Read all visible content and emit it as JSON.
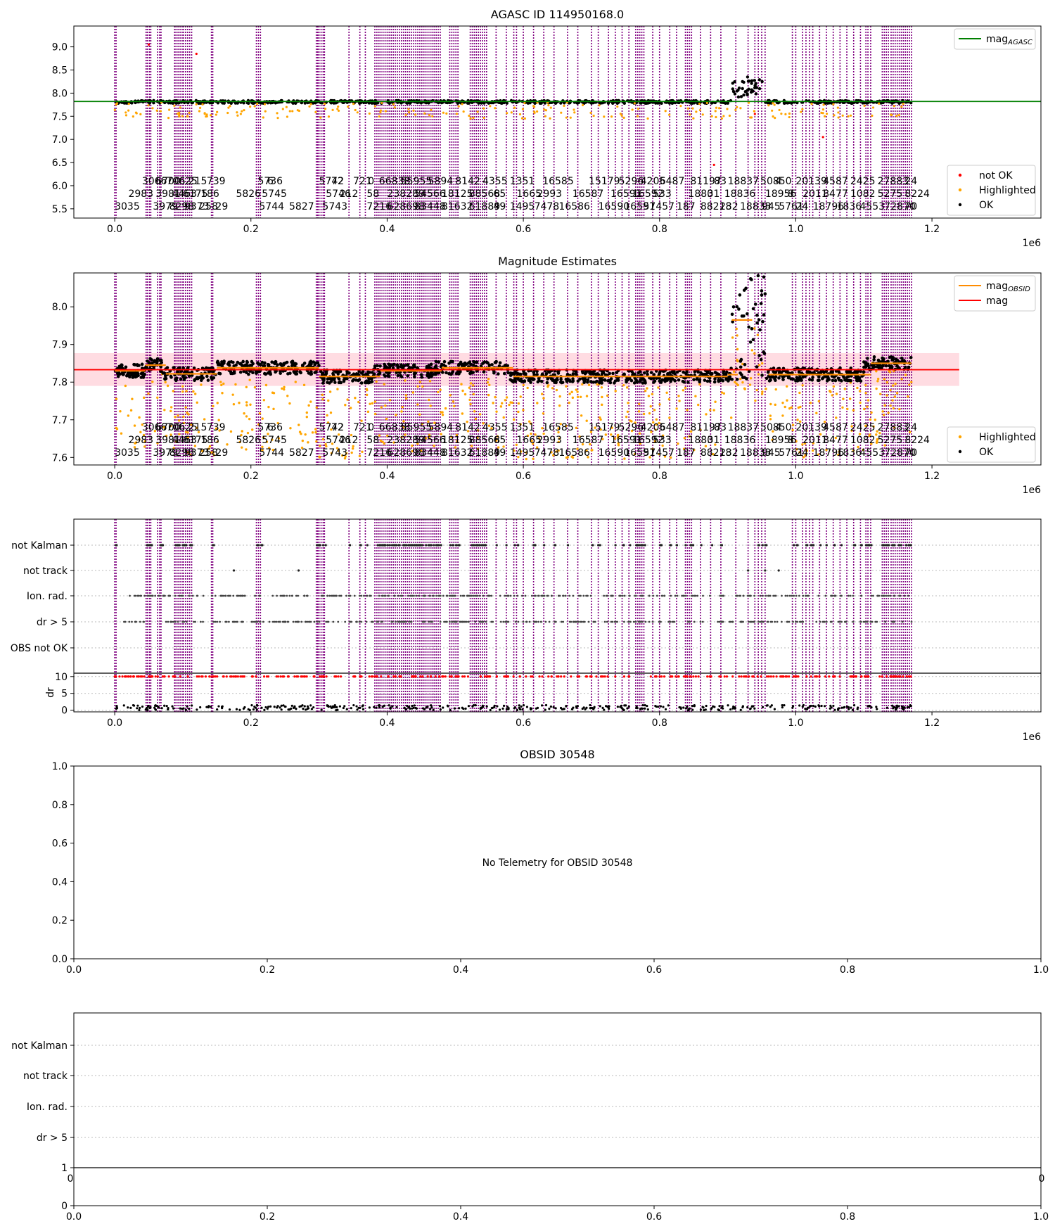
{
  "colors": {
    "ok": "#000000",
    "highlighted": "#ffa500",
    "not_ok": "#ff0000",
    "agasc": "#008000",
    "mag": "#ff0000",
    "mag_obsid": "#ff8c00",
    "obsid_lines": "#800080",
    "band": "#ffc0cb"
  },
  "chart_data": [
    {
      "type": "scatter",
      "title": "AGASC ID 114950168.0",
      "xlim": [
        -60000,
        1360000
      ],
      "ylim": [
        5.3,
        9.45
      ],
      "x_offset_label": "1e6",
      "x_ticks": [
        {
          "v": 0,
          "label": "0.0"
        },
        {
          "v": 200000,
          "label": "0.2"
        },
        {
          "v": 400000,
          "label": "0.4"
        },
        {
          "v": 600000,
          "label": "0.6"
        },
        {
          "v": 800000,
          "label": "0.8"
        },
        {
          "v": 1000000,
          "label": "1.0"
        },
        {
          "v": 1200000,
          "label": "1.2"
        }
      ],
      "y_ticks": [
        {
          "v": 5.5,
          "label": "5.5"
        },
        {
          "v": 6.0,
          "label": "6.0"
        },
        {
          "v": 6.5,
          "label": "6.5"
        },
        {
          "v": 7.0,
          "label": "7.0"
        },
        {
          "v": 7.5,
          "label": "7.5"
        },
        {
          "v": 8.0,
          "label": "8.0"
        },
        {
          "v": 8.5,
          "label": "8.5"
        },
        {
          "v": 9.0,
          "label": "9.0"
        }
      ],
      "hline": {
        "y": 7.82,
        "xmin": -60000,
        "xmax": 1360000,
        "color": "#008000"
      },
      "legend_top": [
        {
          "label": "mag",
          "sub": "AGASC",
          "color": "#008000"
        }
      ],
      "legend_bottom": [
        {
          "label": "not OK",
          "color": "#ff0000"
        },
        {
          "label": "Highlighted",
          "color": "#ffa500"
        },
        {
          "label": "OK",
          "color": "#000000"
        }
      ],
      "grid": false
    },
    {
      "type": "scatter",
      "title": "Magnitude Estimates",
      "xlim": [
        -60000,
        1360000
      ],
      "ylim": [
        7.58,
        8.09
      ],
      "x_offset_label": "1e6",
      "x_ticks": [
        {
          "v": 0,
          "label": "0.0"
        },
        {
          "v": 200000,
          "label": "0.2"
        },
        {
          "v": 400000,
          "label": "0.4"
        },
        {
          "v": 600000,
          "label": "0.6"
        },
        {
          "v": 800000,
          "label": "0.8"
        },
        {
          "v": 1000000,
          "label": "1.0"
        },
        {
          "v": 1200000,
          "label": "1.2"
        }
      ],
      "y_ticks": [
        {
          "v": 7.6,
          "label": "7.6"
        },
        {
          "v": 7.7,
          "label": "7.7"
        },
        {
          "v": 7.8,
          "label": "7.8"
        },
        {
          "v": 7.9,
          "label": "7.9"
        },
        {
          "v": 8.0,
          "label": "8.0"
        }
      ],
      "hline": {
        "y": 7.833,
        "xmin": -60000,
        "xmax": 1240000,
        "color": "#ff0000"
      },
      "band": {
        "y0": 7.79,
        "y1": 7.877,
        "xmin": -60000,
        "xmax": 1240000
      },
      "legend_top": [
        {
          "label": "mag",
          "sub": "OBSID",
          "color": "#ff8c00"
        },
        {
          "label": "mag",
          "sub": "",
          "color": "#ff0000"
        }
      ],
      "legend_bottom": [
        {
          "label": "Highlighted",
          "color": "#ffa500"
        },
        {
          "label": "OK",
          "color": "#000000"
        }
      ],
      "grid": false
    },
    {
      "type": "scatter",
      "title": "",
      "xlim": [
        -60000,
        1360000
      ],
      "categories": [
        "not Kalman",
        "not track",
        "Ion. rad.",
        "dr > 5",
        "OBS not OK"
      ],
      "dr_ylim": [
        -0.5,
        11
      ],
      "dr_ticks": [
        {
          "v": 0,
          "label": "0"
        },
        {
          "v": 5,
          "label": "5"
        },
        {
          "v": 10,
          "label": "10"
        }
      ],
      "dr_ylabel": "dr",
      "x_offset_label": "1e6",
      "x_ticks": [
        {
          "v": 0,
          "label": "0.0"
        },
        {
          "v": 200000,
          "label": "0.2"
        },
        {
          "v": 400000,
          "label": "0.4"
        },
        {
          "v": 600000,
          "label": "0.6"
        },
        {
          "v": 800000,
          "label": "0.8"
        },
        {
          "v": 1000000,
          "label": "1.0"
        },
        {
          "v": 1200000,
          "label": "1.2"
        }
      ],
      "grid": true
    },
    {
      "type": "scatter",
      "title": "OBSID 30548",
      "xlim": [
        0,
        1
      ],
      "ylim": [
        0,
        1
      ],
      "annotation": "No Telemetry for OBSID 30548",
      "x_ticks": [
        {
          "v": 0,
          "label": "0.0"
        },
        {
          "v": 0.2,
          "label": "0.2"
        },
        {
          "v": 0.4,
          "label": "0.4"
        },
        {
          "v": 0.6,
          "label": "0.6"
        },
        {
          "v": 0.8,
          "label": "0.8"
        },
        {
          "v": 1,
          "label": "1.0"
        }
      ],
      "y_ticks": [
        {
          "v": 0,
          "label": "0.0"
        },
        {
          "v": 0.2,
          "label": "0.2"
        },
        {
          "v": 0.4,
          "label": "0.4"
        },
        {
          "v": 0.6,
          "label": "0.6"
        },
        {
          "v": 0.8,
          "label": "0.8"
        },
        {
          "v": 1,
          "label": "1.0"
        }
      ]
    },
    {
      "type": "scatter",
      "title": "",
      "categories": [
        "not Kalman",
        "not track",
        "Ion. rad.",
        "dr > 5"
      ],
      "top_tick_labels": [
        "0",
        "0"
      ],
      "lower_y_ticks": [
        {
          "v": 0,
          "label": "0"
        },
        {
          "v": 1,
          "label": "1"
        }
      ],
      "x_ticks": [
        {
          "v": 0,
          "label": "0.0"
        },
        {
          "v": 0.2,
          "label": "0.2"
        },
        {
          "v": 0.4,
          "label": "0.4"
        },
        {
          "v": 0.6,
          "label": "0.6"
        },
        {
          "v": 0.8,
          "label": "0.8"
        },
        {
          "v": 1,
          "label": "1.0"
        }
      ],
      "grid": true
    }
  ],
  "obsid_lines_x": [
    0,
    2000,
    46000,
    48000,
    51000,
    53000,
    63000,
    66000,
    68000,
    88000,
    90000,
    93000,
    96000,
    99000,
    101000,
    104000,
    107000,
    110000,
    113000,
    142000,
    144000,
    208000,
    211000,
    214000,
    296000,
    298000,
    300000,
    303000,
    306000,
    308000,
    344000,
    360000,
    368000,
    382000,
    385000,
    388000,
    391000,
    394000,
    397000,
    400000,
    403000,
    406000,
    409000,
    412000,
    415000,
    418000,
    421000,
    424000,
    427000,
    430000,
    433000,
    436000,
    439000,
    442000,
    445000,
    448000,
    451000,
    454000,
    457000,
    460000,
    463000,
    466000,
    469000,
    472000,
    475000,
    478000,
    492000,
    495000,
    498000,
    501000,
    504000,
    522000,
    525000,
    528000,
    531000,
    534000,
    537000,
    540000,
    543000,
    546000,
    560000,
    575000,
    586000,
    590000,
    600000,
    615000,
    630000,
    645000,
    665000,
    680000,
    700000,
    710000,
    725000,
    735000,
    745000,
    755000,
    765000,
    768000,
    771000,
    774000,
    777000,
    790000,
    800000,
    815000,
    825000,
    838000,
    841000,
    844000,
    847000,
    860000,
    875000,
    890000,
    912000,
    930000,
    940000,
    945000,
    950000,
    955000,
    995000,
    1000000,
    1010000,
    1015000,
    1020000,
    1025000,
    1035000,
    1045000,
    1055000,
    1065000,
    1075000,
    1085000,
    1095000,
    1103000,
    1106000,
    1110000,
    1127000,
    1130000,
    1133000,
    1136000,
    1140000,
    1143000,
    1146000,
    1149000,
    1152000,
    1155000,
    1158000,
    1161000,
    1164000,
    1167000,
    1170000
  ],
  "obsid_labels_row1": [
    {
      "x": 40000,
      "t": "3066"
    },
    {
      "x": 60000,
      "t": "6700"
    },
    {
      "x": 76000,
      "t": "706"
    },
    {
      "x": 94000,
      "t": "625"
    },
    {
      "x": 108000,
      "t": "215"
    },
    {
      "x": 135000,
      "t": "739"
    },
    {
      "x": 210000,
      "t": "5736"
    },
    {
      "x": 224000,
      "t": "6"
    },
    {
      "x": 300000,
      "t": "5742"
    },
    {
      "x": 318000,
      "t": "72"
    },
    {
      "x": 350000,
      "t": "721"
    },
    {
      "x": 372000,
      "t": "0"
    },
    {
      "x": 388000,
      "t": "66838"
    },
    {
      "x": 420000,
      "t": "55955"
    },
    {
      "x": 460000,
      "t": "5894"
    },
    {
      "x": 500000,
      "t": "8142"
    },
    {
      "x": 540000,
      "t": "4355"
    },
    {
      "x": 580000,
      "t": "1351"
    },
    {
      "x": 628000,
      "t": "16585"
    },
    {
      "x": 696000,
      "t": "15179"
    },
    {
      "x": 740000,
      "t": "5296"
    },
    {
      "x": 772000,
      "t": "4205"
    },
    {
      "x": 800000,
      "t": "6487"
    },
    {
      "x": 845000,
      "t": "81197"
    },
    {
      "x": 880000,
      "t": "83"
    },
    {
      "x": 900000,
      "t": "18837"
    },
    {
      "x": 948000,
      "t": "50850"
    },
    {
      "x": 970000,
      "t": "4"
    },
    {
      "x": 1000000,
      "t": "20139"
    },
    {
      "x": 1040000,
      "t": "4587"
    },
    {
      "x": 1080000,
      "t": "2425"
    },
    {
      "x": 1120000,
      "t": "27883"
    },
    {
      "x": 1160000,
      "t": "24"
    }
  ],
  "obsid_labels_row2": [
    {
      "x": 20000,
      "t": "2983"
    },
    {
      "x": 60000,
      "t": "3981"
    },
    {
      "x": 84000,
      "t": "4463"
    },
    {
      "x": 100000,
      "t": "6175"
    },
    {
      "x": 126000,
      "t": "186"
    },
    {
      "x": 178000,
      "t": "5826"
    },
    {
      "x": 216000,
      "t": "5745"
    },
    {
      "x": 310000,
      "t": "5746"
    },
    {
      "x": 330000,
      "t": "212"
    },
    {
      "x": 370000,
      "t": "58"
    },
    {
      "x": 400000,
      "t": "238289"
    },
    {
      "x": 440000,
      "t": "54566"
    },
    {
      "x": 480000,
      "t": "18125"
    },
    {
      "x": 520000,
      "t": "88568"
    },
    {
      "x": 556000,
      "t": "65"
    },
    {
      "x": 590000,
      "t": "1665"
    },
    {
      "x": 620000,
      "t": "2993"
    },
    {
      "x": 672000,
      "t": "16587"
    },
    {
      "x": 728000,
      "t": "16591"
    },
    {
      "x": 760000,
      "t": "16592"
    },
    {
      "x": 790000,
      "t": "533"
    },
    {
      "x": 842000,
      "t": "1880"
    },
    {
      "x": 870000,
      "t": "31"
    },
    {
      "x": 895000,
      "t": "18836"
    },
    {
      "x": 955000,
      "t": "18956"
    },
    {
      "x": 988000,
      "t": "8"
    },
    {
      "x": 1010000,
      "t": "2011"
    },
    {
      "x": 1040000,
      "t": "8477"
    },
    {
      "x": 1080000,
      "t": "1082"
    },
    {
      "x": 1120000,
      "t": "5275"
    },
    {
      "x": 1160000,
      "t": "8224"
    }
  ],
  "obsid_labels_row3": [
    {
      "x": 0,
      "t": "3035"
    },
    {
      "x": 56000,
      "t": "3979"
    },
    {
      "x": 80000,
      "t": "8298"
    },
    {
      "x": 102000,
      "t": "9373"
    },
    {
      "x": 124000,
      "t": "258"
    },
    {
      "x": 148000,
      "t": "29"
    },
    {
      "x": 212000,
      "t": "5744"
    },
    {
      "x": 256000,
      "t": "5827"
    },
    {
      "x": 305000,
      "t": "5743"
    },
    {
      "x": 370000,
      "t": "7216"
    },
    {
      "x": 400000,
      "t": "628698"
    },
    {
      "x": 440000,
      "t": "83448"
    },
    {
      "x": 480000,
      "t": "81632"
    },
    {
      "x": 520000,
      "t": "61889"
    },
    {
      "x": 556000,
      "t": "49"
    },
    {
      "x": 580000,
      "t": "1495"
    },
    {
      "x": 616000,
      "t": "7478"
    },
    {
      "x": 652000,
      "t": "16586"
    },
    {
      "x": 710000,
      "t": "16590"
    },
    {
      "x": 748000,
      "t": "16591"
    },
    {
      "x": 776000,
      "t": "57457"
    },
    {
      "x": 825000,
      "t": "187"
    },
    {
      "x": 860000,
      "t": "88218"
    },
    {
      "x": 888000,
      "t": "232"
    },
    {
      "x": 918000,
      "t": "18833"
    },
    {
      "x": 950000,
      "t": "945"
    },
    {
      "x": 975000,
      "t": "5761"
    },
    {
      "x": 1000000,
      "t": "24"
    },
    {
      "x": 1025000,
      "t": "18796"
    },
    {
      "x": 1060000,
      "t": "1836"
    },
    {
      "x": 1094000,
      "t": "4553"
    },
    {
      "x": 1130000,
      "t": "72870"
    },
    {
      "x": 1160000,
      "t": "70"
    }
  ]
}
